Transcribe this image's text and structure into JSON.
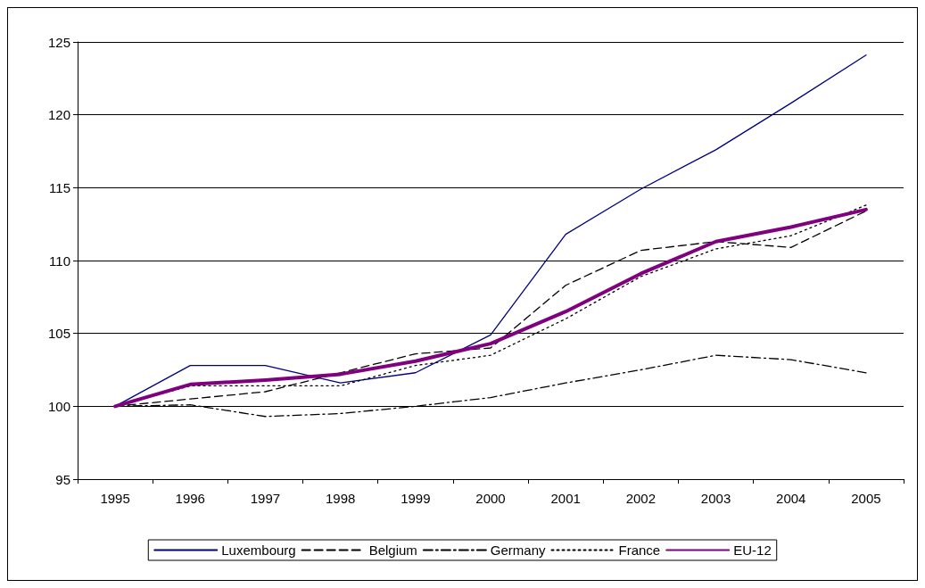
{
  "chart_data": {
    "type": "line",
    "categories": [
      "1995",
      "1996",
      "1997",
      "1998",
      "1999",
      "2000",
      "2001",
      "2002",
      "2003",
      "2004",
      "2005"
    ],
    "ylim": [
      95,
      125
    ],
    "yticks": [
      95,
      100,
      105,
      110,
      115,
      120,
      125
    ],
    "grid": "y",
    "legend": "bottom",
    "marker": "none",
    "series": [
      {
        "name": "Luxembourg",
        "color": "#000080",
        "line_style": "solid",
        "values": [
          100,
          102.8,
          102.8,
          101.6,
          102.3,
          104.9,
          111.8,
          114.9,
          117.6,
          120.8,
          124.1
        ]
      },
      {
        "name": "Belgium",
        "color": "#000000",
        "line_style": "dashed",
        "values": [
          100,
          100.5,
          101.0,
          102.3,
          103.6,
          104.0,
          108.3,
          110.7,
          111.3,
          110.9,
          113.4
        ]
      },
      {
        "name": "Germany",
        "color": "#000000",
        "line_style": "dashdot",
        "values": [
          100,
          100.1,
          99.3,
          99.5,
          100.0,
          100.6,
          101.6,
          102.5,
          103.5,
          103.2,
          102.3
        ]
      },
      {
        "name": "France",
        "color": "#000000",
        "line_style": "dotted",
        "values": [
          100,
          101.4,
          101.4,
          101.4,
          102.8,
          103.5,
          106.0,
          108.9,
          110.8,
          111.7,
          113.8
        ]
      },
      {
        "name": "EU-12",
        "color": "#800080",
        "line_style": "solid",
        "values": [
          100,
          101.5,
          101.8,
          102.2,
          103.1,
          104.3,
          106.5,
          109.1,
          111.3,
          112.3,
          113.5
        ]
      }
    ]
  }
}
